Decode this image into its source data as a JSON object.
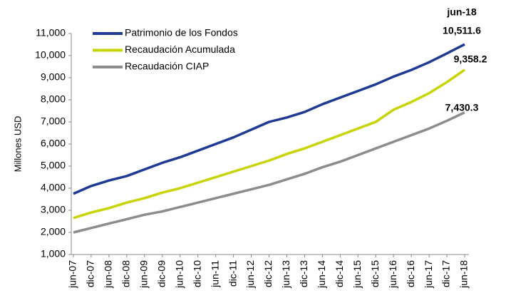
{
  "chart_data": {
    "type": "line",
    "annotation": "jun-18",
    "ylabel": "Millones USD",
    "categories": [
      "jun-07",
      "dic-07",
      "jun-08",
      "dic-08",
      "jun-09",
      "dic-09",
      "jun-10",
      "dic-10",
      "jun-11",
      "dic-11",
      "jun-12",
      "dic-12",
      "jun-13",
      "dic-13",
      "jun-14",
      "dic-14",
      "jun-15",
      "dic-15",
      "jun-16",
      "dic-16",
      "jun-17",
      "dic-17",
      "jun-18"
    ],
    "series": [
      {
        "name": "Patrimonio de los Fondos",
        "color": "#1f3a93",
        "values": [
          3750,
          4100,
          4350,
          4550,
          4850,
          5150,
          5400,
          5700,
          6000,
          6300,
          6650,
          7000,
          7200,
          7450,
          7800,
          8100,
          8400,
          8700,
          9050,
          9350,
          9700,
          10100,
          10511.6
        ],
        "value_labels": [
          null,
          null,
          null,
          null,
          null,
          null,
          null,
          null,
          null,
          null,
          null,
          null,
          null,
          null,
          null,
          null,
          null,
          null,
          null,
          null,
          null,
          null,
          "10,511.6"
        ]
      },
      {
        "name": "Recaudación Acumulada",
        "color": "#c8d400",
        "values": [
          2650,
          2900,
          3100,
          3350,
          3550,
          3800,
          4000,
          4250,
          4500,
          4750,
          5000,
          5250,
          5550,
          5800,
          6100,
          6400,
          6700,
          7000,
          7550,
          7900,
          8300,
          8800,
          9358.2
        ],
        "value_labels": [
          null,
          null,
          null,
          null,
          null,
          null,
          null,
          null,
          null,
          null,
          null,
          null,
          null,
          null,
          null,
          null,
          null,
          null,
          null,
          null,
          null,
          null,
          "9,358.2"
        ]
      },
      {
        "name": "Recaudación CIAP",
        "color": "#8c8c8c",
        "values": [
          2000,
          2200,
          2400,
          2600,
          2800,
          2950,
          3150,
          3350,
          3550,
          3750,
          3950,
          4150,
          4400,
          4650,
          4950,
          5200,
          5500,
          5800,
          6100,
          6400,
          6700,
          7050,
          7430.3
        ],
        "value_labels": [
          null,
          null,
          null,
          null,
          null,
          null,
          null,
          null,
          null,
          null,
          null,
          null,
          null,
          null,
          null,
          null,
          null,
          null,
          null,
          null,
          null,
          null,
          "7,430.3"
        ]
      }
    ],
    "ylim": [
      1000,
      11000
    ],
    "yticks": [
      {
        "value": 1000,
        "label": "1,000"
      },
      {
        "value": 2000,
        "label": "2,000"
      },
      {
        "value": 3000,
        "label": "3,000"
      },
      {
        "value": 4000,
        "label": "4,000"
      },
      {
        "value": 5000,
        "label": "5,000"
      },
      {
        "value": 6000,
        "label": "6,000"
      },
      {
        "value": 7000,
        "label": "7,000"
      },
      {
        "value": 8000,
        "label": "8,000"
      },
      {
        "value": 9000,
        "label": "9,000"
      },
      {
        "value": 10000,
        "label": "10,000"
      },
      {
        "value": 11000,
        "label": "11,000"
      }
    ],
    "grid": false,
    "legend": "upper left"
  }
}
